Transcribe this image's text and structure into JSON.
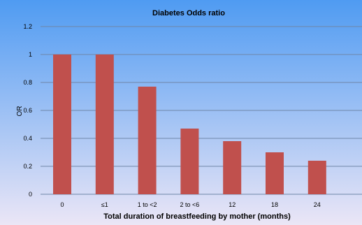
{
  "chart_data": {
    "type": "bar",
    "title": "Diabetes Odds ratio",
    "xlabel": "Total duration of breastfeeding by mother (months)",
    "ylabel": "OR",
    "categories": [
      "0",
      "≤1",
      "1 to <2",
      "2  to <6",
      "12",
      "18",
      "24"
    ],
    "values": [
      1.0,
      1.0,
      0.77,
      0.47,
      0.38,
      0.3,
      0.24
    ],
    "ylim": [
      0,
      1.2
    ],
    "yticks": [
      "0",
      "0.2",
      "0.4",
      "0.6",
      "0.8",
      "1",
      "1.2"
    ],
    "grid": true,
    "legend": "none",
    "colors": {
      "bar": "#c0504d",
      "background_top": "#4f9bf2",
      "background_bottom": "#ebe6f6",
      "grid": "#6f86a8"
    }
  }
}
